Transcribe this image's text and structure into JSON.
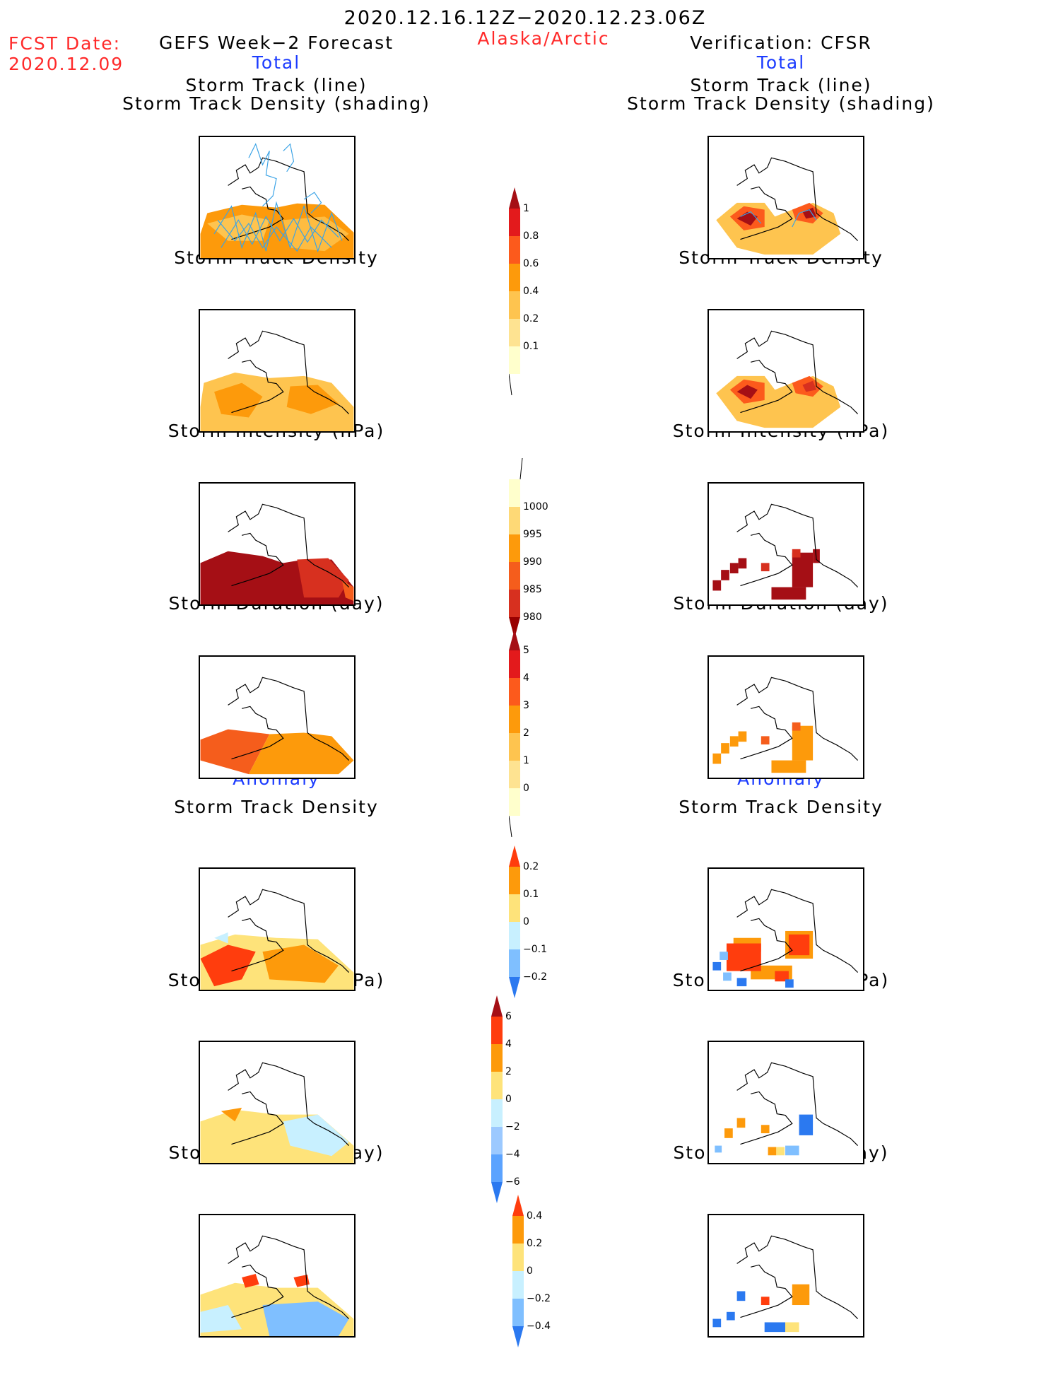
{
  "header": {
    "period": "2020.12.16.12Z−2020.12.23.06Z",
    "fcst_label": "FCST Date:",
    "fcst_date": "2020.12.09",
    "left_title": "GEFS Week−2 Forecast",
    "region": "Alaska/Arctic",
    "right_title": "Verification: CFSR"
  },
  "sections": {
    "total": "Total",
    "anomaly": "Anomaly"
  },
  "panels": {
    "track": [
      "Storm Track (line)",
      "Storm Track Density (shading)"
    ],
    "density": "Storm Track Density",
    "intensity": "Storm Intensity (hPa)",
    "duration": "Storm Duration (day)"
  },
  "colorbars": {
    "density_total": {
      "labels": [
        "1",
        "0.8",
        "0.6",
        "0.4",
        "0.2",
        "0.1"
      ],
      "colors": [
        "#a50f15",
        "#e31a1c",
        "#fc5a1c",
        "#fd9a0b",
        "#fec44f",
        "#fee391",
        "#ffffcc"
      ]
    },
    "intensity_total": {
      "labels": [
        "1000",
        "995",
        "990",
        "985",
        "980"
      ],
      "colors": [
        "#ffffcc",
        "#fed976",
        "#fd9a0b",
        "#f55d1c",
        "#d7301f",
        "#990000"
      ]
    },
    "duration_total": {
      "labels": [
        "5",
        "4",
        "3",
        "2",
        "1",
        "0"
      ],
      "colors": [
        "#a50f15",
        "#e31a1c",
        "#fc5a1c",
        "#fd9a0b",
        "#fec44f",
        "#fee391",
        "#ffffcc"
      ]
    },
    "density_anom": {
      "labels": [
        "0.2",
        "0.1",
        "0",
        "−0.1",
        "−0.2"
      ],
      "colors": [
        "#ff3d0d",
        "#fd9a0b",
        "#fee37a",
        "#c8f0ff",
        "#7fbfff",
        "#2b79f0"
      ]
    },
    "intensity_anom": {
      "labels": [
        "6",
        "4",
        "2",
        "0",
        "−2",
        "−4",
        "−6"
      ],
      "colors": [
        "#a50f15",
        "#ff3d0d",
        "#fd9a0b",
        "#fee37a",
        "#c8f0ff",
        "#9cc9ff",
        "#5ba3ff",
        "#2b79f0"
      ]
    },
    "duration_anom": {
      "labels": [
        "0.4",
        "0.2",
        "0",
        "−0.2",
        "−0.4"
      ],
      "colors": [
        "#ff3d0d",
        "#fd9a0b",
        "#fee37a",
        "#c8f0ff",
        "#7fbfff",
        "#2b79f0"
      ]
    }
  }
}
